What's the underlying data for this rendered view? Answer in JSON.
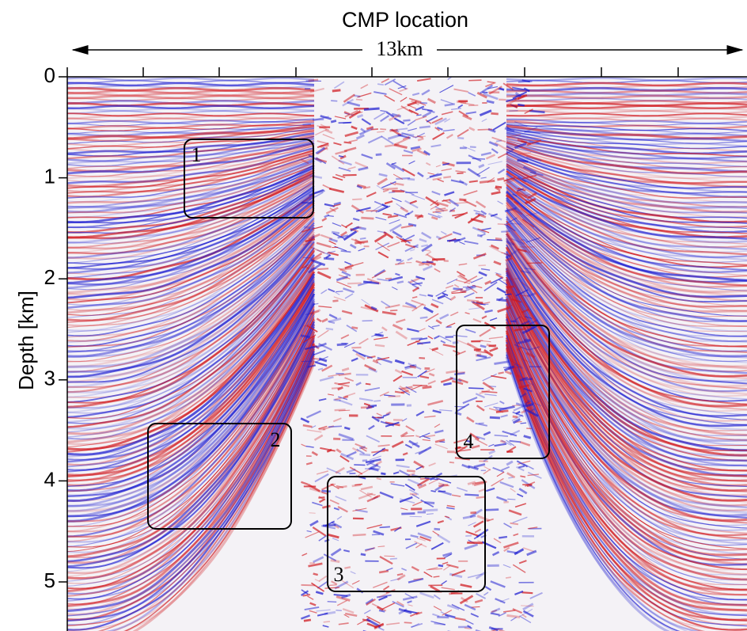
{
  "header": {
    "title": "CMP location",
    "scale": "13km"
  },
  "depth_axis": {
    "label": "Depth [km]",
    "ticks": [
      0,
      1,
      2,
      3,
      4,
      5
    ]
  },
  "boxes": [
    {
      "label": "1"
    },
    {
      "label": "2"
    },
    {
      "label": "3"
    },
    {
      "label": "4"
    }
  ]
}
